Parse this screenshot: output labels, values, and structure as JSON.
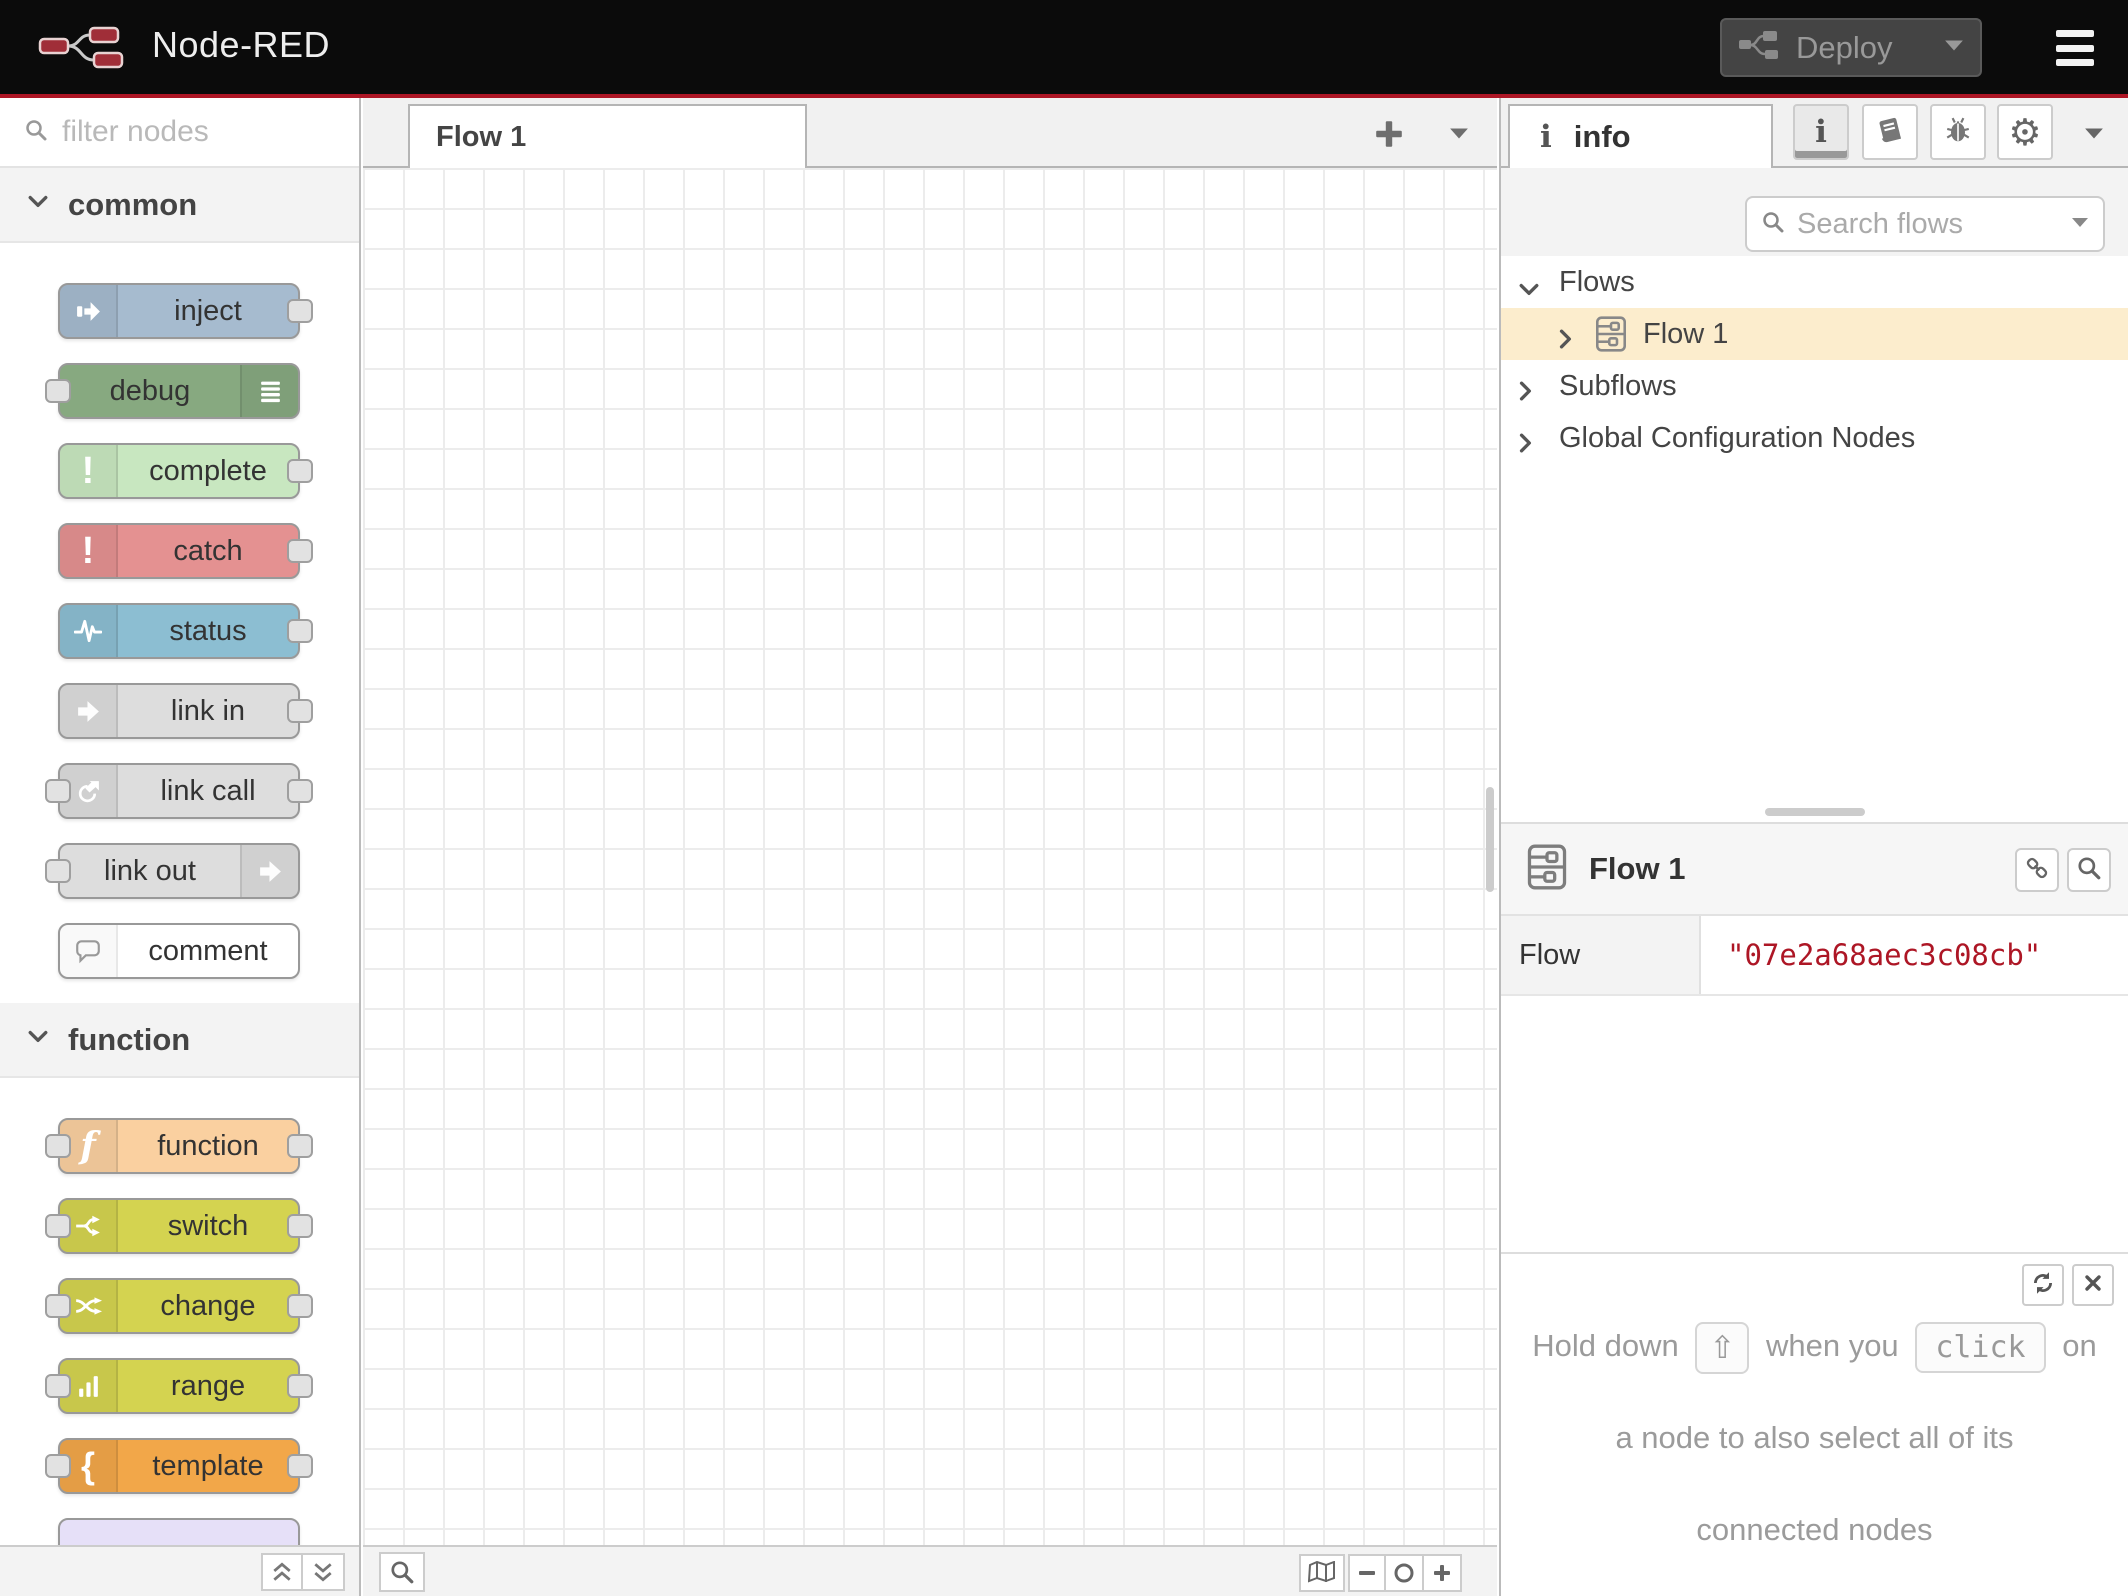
{
  "header": {
    "title": "Node-RED",
    "deploy_label": "Deploy"
  },
  "colors": {
    "accent_red": "#ad1625",
    "selected_flow_bg": "#fcedcd"
  },
  "palette": {
    "filter_placeholder": "filter nodes",
    "sections": [
      {
        "label": "common",
        "nodes": [
          {
            "label": "inject",
            "color": "#a6bbcf",
            "icon": "inject-arrow",
            "icon_side": "left",
            "ports": [
              "right"
            ]
          },
          {
            "label": "debug",
            "color": "#87a980",
            "icon": "list",
            "icon_side": "right",
            "ports": [
              "left"
            ]
          },
          {
            "label": "complete",
            "color": "#c8e7c0",
            "icon": "exclamation",
            "icon_side": "left",
            "ports": [
              "right"
            ]
          },
          {
            "label": "catch",
            "color": "#e49191",
            "icon": "exclamation",
            "icon_side": "left",
            "ports": [
              "right"
            ]
          },
          {
            "label": "status",
            "color": "#8cbed2",
            "icon": "pulse",
            "icon_side": "left",
            "ports": [
              "right"
            ]
          },
          {
            "label": "link in",
            "color": "#dddddd",
            "icon": "link-arrow",
            "icon_side": "left",
            "ports": [
              "right"
            ]
          },
          {
            "label": "link call",
            "color": "#dddddd",
            "icon": "link-call",
            "icon_side": "left",
            "ports": [
              "left",
              "right"
            ]
          },
          {
            "label": "link out",
            "color": "#dddddd",
            "icon": "link-arrow",
            "icon_side": "right",
            "ports": [
              "left"
            ]
          },
          {
            "label": "comment",
            "color": "#ffffff",
            "icon": "comment-bubble",
            "icon_side": "left",
            "ports": []
          }
        ]
      },
      {
        "label": "function",
        "nodes": [
          {
            "label": "function",
            "color": "#fad0a0",
            "icon": "function-f",
            "icon_side": "left",
            "ports": [
              "left",
              "right"
            ]
          },
          {
            "label": "switch",
            "color": "#d4d350",
            "icon": "switch-branch",
            "icon_side": "left",
            "ports": [
              "left",
              "right"
            ]
          },
          {
            "label": "change",
            "color": "#d4d350",
            "icon": "shuffle",
            "icon_side": "left",
            "ports": [
              "left",
              "right"
            ]
          },
          {
            "label": "range",
            "color": "#d4d350",
            "icon": "range-bars",
            "icon_side": "left",
            "ports": [
              "left",
              "right"
            ]
          },
          {
            "label": "template",
            "color": "#f2a749",
            "icon": "curly-brace",
            "icon_side": "left",
            "ports": [
              "left",
              "right"
            ]
          },
          {
            "label": "",
            "color": "#e6e0f8",
            "icon": "",
            "icon_side": "left",
            "ports": []
          }
        ]
      }
    ]
  },
  "workspace": {
    "tab_label": "Flow 1"
  },
  "sidebar": {
    "tab_label": "info",
    "search_placeholder": "Search flows",
    "tree": {
      "flows": "Flows",
      "flow1": "Flow 1",
      "subflows": "Subflows",
      "global": "Global Configuration Nodes"
    },
    "detail": {
      "title": "Flow 1",
      "prop_key": "Flow",
      "prop_value": "\"07e2a68aec3c08cb\""
    },
    "tip": {
      "line1_prefix": "Hold down",
      "shift_key": "⇧",
      "line1_mid": "when you",
      "click_key": "click",
      "line1_suffix": "on",
      "line2": "a node to also select all of its",
      "line3": "connected nodes"
    }
  }
}
